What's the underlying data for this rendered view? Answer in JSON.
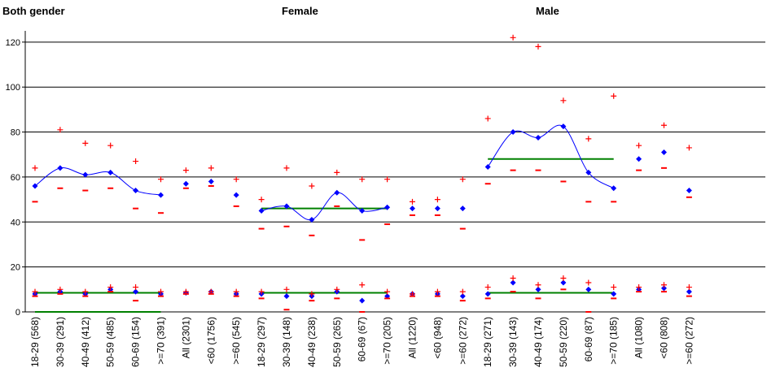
{
  "chart_data": {
    "type": "scatter",
    "panel_titles": [
      "Both gender",
      "Female",
      "Male"
    ],
    "ylim": [
      0,
      125
    ],
    "yticks": [
      0,
      20,
      40,
      60,
      80,
      100,
      120
    ],
    "grid": "horizontal",
    "categories": [
      "18-29 (568)",
      "30-39 (291)",
      "40-49 (412)",
      "50-59 (485)",
      "60-69 (154)",
      ">=70 (391)",
      "All (2301)",
      "<60 (1756)",
      ">=60 (545)",
      "18-29 (297)",
      "30-39 (148)",
      "40-49 (238)",
      "50-59 (265)",
      "60-69 (67)",
      ">=70 (205)",
      "All (1220)",
      "<60 (948)",
      ">=60 (272)",
      "18-29 (271)",
      "30-39 (143)",
      "40-49 (174)",
      "50-59 (220)",
      "60-69 (87)",
      ">=70 (185)",
      "All (1080)",
      "<60 (808)",
      ">=60 (272)"
    ],
    "series": [
      {
        "role": "upper-estimate-mean",
        "color": "#0000ff",
        "marker": "diamond",
        "values": [
          56,
          64,
          61,
          62,
          54,
          52,
          57,
          58,
          52,
          45,
          47,
          41,
          53,
          45,
          46.5,
          46,
          46,
          46,
          64.5,
          80,
          77.5,
          82.5,
          62,
          55,
          68,
          71,
          54
        ]
      },
      {
        "role": "upper-estimate-upper-limit",
        "color": "#ff0000",
        "marker": "plus",
        "values": [
          64,
          81,
          75,
          74,
          67,
          59,
          63,
          64,
          59,
          50,
          64,
          56,
          62,
          59,
          59,
          49,
          50,
          59,
          86,
          122,
          118,
          94,
          77,
          96,
          74,
          83,
          73
        ]
      },
      {
        "role": "upper-estimate-lower-limit",
        "color": "#ff0000",
        "marker": "dash",
        "values": [
          49,
          55,
          54,
          55,
          46,
          44,
          55,
          56,
          47,
          37,
          38,
          34,
          47,
          32,
          39,
          43,
          43,
          37,
          57,
          63,
          63,
          58,
          49,
          49,
          63,
          64,
          51
        ]
      },
      {
        "role": "lower-estimate-mean",
        "color": "#0000ff",
        "marker": "diamond",
        "values": [
          8,
          9,
          8,
          10,
          9,
          8,
          8.5,
          9,
          8,
          8,
          7,
          7,
          9,
          5,
          7,
          8,
          8,
          7,
          8,
          13,
          10,
          13,
          10,
          8,
          10,
          10.5,
          9
        ]
      },
      {
        "role": "lower-estimate-upper-limit",
        "color": "#ff0000",
        "marker": "plus",
        "values": [
          9,
          10,
          9,
          11,
          11,
          9,
          9,
          9,
          9,
          9,
          10,
          8,
          10,
          12,
          9,
          8,
          9,
          9,
          11,
          15,
          12,
          15,
          13,
          11,
          11,
          12,
          11
        ]
      },
      {
        "role": "lower-estimate-lower-limit",
        "color": "#ff0000",
        "marker": "dash",
        "values": [
          7,
          8,
          7,
          9,
          5,
          7,
          8,
          8,
          7,
          6,
          1,
          5,
          6,
          0,
          6,
          7,
          7,
          5,
          6,
          9,
          6,
          10,
          0,
          6,
          9,
          9,
          7
        ]
      }
    ],
    "curves": [
      {
        "color": "#0000ff",
        "series_role": "upper-estimate-mean",
        "from_index": 0,
        "to_index": 5
      },
      {
        "color": "#0000ff",
        "series_role": "upper-estimate-mean",
        "from_index": 9,
        "to_index": 14
      },
      {
        "color": "#0000ff",
        "series_role": "upper-estimate-mean",
        "from_index": 18,
        "to_index": 23
      }
    ],
    "reference_lines": [
      {
        "color": "#008000",
        "from_index": 0,
        "to_index": 5,
        "y": 0
      },
      {
        "color": "#008000",
        "from_index": 0,
        "to_index": 5,
        "y": 8.5
      },
      {
        "color": "#008000",
        "from_index": 9,
        "to_index": 14,
        "y": 46
      },
      {
        "color": "#008000",
        "from_index": 9,
        "to_index": 14,
        "y": 8.5
      },
      {
        "color": "#008000",
        "from_index": 18,
        "to_index": 23,
        "y": 68
      },
      {
        "color": "#008000",
        "from_index": 18,
        "to_index": 23,
        "y": 8.5
      }
    ]
  }
}
